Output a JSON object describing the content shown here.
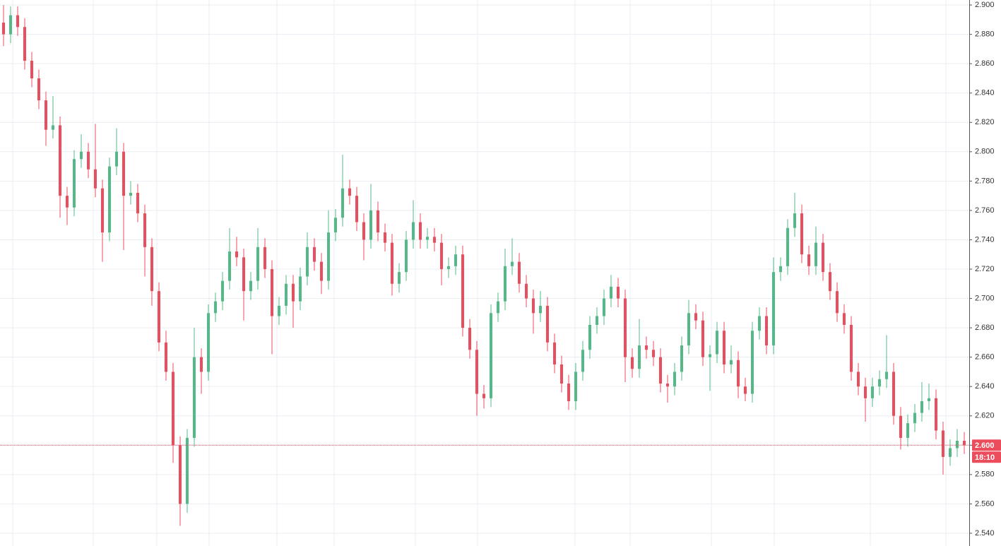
{
  "chart_data": {
    "type": "candlestick",
    "ylim": [
      2.5313,
      2.9034
    ],
    "yticks": [
      {
        "value": 2.54,
        "label": "2.540"
      },
      {
        "value": 2.56,
        "label": "2.560"
      },
      {
        "value": 2.58,
        "label": "2.580"
      },
      {
        "value": 2.6,
        "label": "2.600"
      },
      {
        "value": 2.62,
        "label": "2.620"
      },
      {
        "value": 2.64,
        "label": "2.640"
      },
      {
        "value": 2.66,
        "label": "2.660"
      },
      {
        "value": 2.68,
        "label": "2.680"
      },
      {
        "value": 2.7,
        "label": "2.700"
      },
      {
        "value": 2.72,
        "label": "2.720"
      },
      {
        "value": 2.74,
        "label": "2.740"
      },
      {
        "value": 2.76,
        "label": "2.760"
      },
      {
        "value": 2.78,
        "label": "2.780"
      },
      {
        "value": 2.8,
        "label": "2.800"
      },
      {
        "value": 2.82,
        "label": "2.820"
      },
      {
        "value": 2.84,
        "label": "2.840"
      },
      {
        "value": 2.86,
        "label": "2.860"
      },
      {
        "value": 2.88,
        "label": "2.880"
      },
      {
        "value": 2.9,
        "label": "2.900"
      }
    ],
    "grid": true,
    "up_color": "#53b987",
    "down_color": "#eb4d5c",
    "last_price": {
      "value": 2.6,
      "label": "2.600"
    },
    "countdown": "18:10",
    "ohlc": [
      [
        2.888,
        2.9,
        2.872,
        2.88
      ],
      [
        2.88,
        2.899,
        2.874,
        2.893
      ],
      [
        2.893,
        2.899,
        2.879,
        2.885
      ],
      [
        2.885,
        2.891,
        2.856,
        2.862
      ],
      [
        2.862,
        2.868,
        2.844,
        2.85
      ],
      [
        2.85,
        2.856,
        2.829,
        2.835
      ],
      [
        2.835,
        2.841,
        2.804,
        2.815
      ],
      [
        2.815,
        2.838,
        2.809,
        2.818
      ],
      [
        2.818,
        2.824,
        2.755,
        2.77
      ],
      [
        2.77,
        2.776,
        2.75,
        2.762
      ],
      [
        2.762,
        2.801,
        2.756,
        2.795
      ],
      [
        2.795,
        2.812,
        2.789,
        2.8
      ],
      [
        2.8,
        2.806,
        2.782,
        2.788
      ],
      [
        2.788,
        2.819,
        2.769,
        2.775
      ],
      [
        2.775,
        2.781,
        2.725,
        2.745
      ],
      [
        2.745,
        2.796,
        2.739,
        2.79
      ],
      [
        2.79,
        2.816,
        2.784,
        2.8
      ],
      [
        2.8,
        2.806,
        2.733,
        2.77
      ],
      [
        2.77,
        2.78,
        2.764,
        2.772
      ],
      [
        2.772,
        2.778,
        2.752,
        2.758
      ],
      [
        2.758,
        2.764,
        2.715,
        2.735
      ],
      [
        2.735,
        2.741,
        2.695,
        2.705
      ],
      [
        2.705,
        2.711,
        2.664,
        2.67
      ],
      [
        2.67,
        2.678,
        2.644,
        2.65
      ],
      [
        2.65,
        2.656,
        2.588,
        2.6
      ],
      [
        2.6,
        2.606,
        2.545,
        2.56
      ],
      [
        2.56,
        2.611,
        2.554,
        2.605
      ],
      [
        2.605,
        2.68,
        2.599,
        2.66
      ],
      [
        2.66,
        2.666,
        2.635,
        2.65
      ],
      [
        2.65,
        2.696,
        2.644,
        2.69
      ],
      [
        2.69,
        2.704,
        2.684,
        2.698
      ],
      [
        2.698,
        2.718,
        2.692,
        2.712
      ],
      [
        2.712,
        2.748,
        2.706,
        2.732
      ],
      [
        2.732,
        2.742,
        2.722,
        2.728
      ],
      [
        2.728,
        2.734,
        2.685,
        2.705
      ],
      [
        2.705,
        2.718,
        2.699,
        2.712
      ],
      [
        2.712,
        2.748,
        2.706,
        2.735
      ],
      [
        2.735,
        2.741,
        2.714,
        2.72
      ],
      [
        2.72,
        2.726,
        2.662,
        2.688
      ],
      [
        2.688,
        2.701,
        2.682,
        2.695
      ],
      [
        2.695,
        2.716,
        2.689,
        2.71
      ],
      [
        2.71,
        2.716,
        2.68,
        2.698
      ],
      [
        2.698,
        2.721,
        2.692,
        2.715
      ],
      [
        2.715,
        2.745,
        2.709,
        2.735
      ],
      [
        2.735,
        2.741,
        2.719,
        2.725
      ],
      [
        2.725,
        2.731,
        2.703,
        2.712
      ],
      [
        2.712,
        2.76,
        2.706,
        2.745
      ],
      [
        2.745,
        2.761,
        2.739,
        2.755
      ],
      [
        2.755,
        2.798,
        2.749,
        2.775
      ],
      [
        2.775,
        2.781,
        2.764,
        2.77
      ],
      [
        2.77,
        2.776,
        2.746,
        2.752
      ],
      [
        2.752,
        2.758,
        2.726,
        2.74
      ],
      [
        2.74,
        2.778,
        2.734,
        2.76
      ],
      [
        2.76,
        2.766,
        2.739,
        2.745
      ],
      [
        2.745,
        2.751,
        2.732,
        2.738
      ],
      [
        2.738,
        2.744,
        2.702,
        2.71
      ],
      [
        2.71,
        2.724,
        2.704,
        2.718
      ],
      [
        2.718,
        2.746,
        2.712,
        2.74
      ],
      [
        2.74,
        2.767,
        2.734,
        2.752
      ],
      [
        2.752,
        2.758,
        2.734,
        2.74
      ],
      [
        2.74,
        2.748,
        2.734,
        2.742
      ],
      [
        2.742,
        2.748,
        2.732,
        2.738
      ],
      [
        2.738,
        2.744,
        2.709,
        2.72
      ],
      [
        2.72,
        2.728,
        2.714,
        2.722
      ],
      [
        2.722,
        2.736,
        2.716,
        2.73
      ],
      [
        2.73,
        2.736,
        2.674,
        2.68
      ],
      [
        2.68,
        2.686,
        2.659,
        2.665
      ],
      [
        2.665,
        2.671,
        2.62,
        2.635
      ],
      [
        2.635,
        2.641,
        2.625,
        2.632
      ],
      [
        2.632,
        2.696,
        2.626,
        2.69
      ],
      [
        2.69,
        2.704,
        2.684,
        2.698
      ],
      [
        2.698,
        2.734,
        2.692,
        2.722
      ],
      [
        2.722,
        2.741,
        2.716,
        2.725
      ],
      [
        2.725,
        2.731,
        2.704,
        2.71
      ],
      [
        2.71,
        2.716,
        2.694,
        2.7
      ],
      [
        2.7,
        2.706,
        2.676,
        2.69
      ],
      [
        2.69,
        2.705,
        2.684,
        2.695
      ],
      [
        2.695,
        2.701,
        2.664,
        2.67
      ],
      [
        2.67,
        2.676,
        2.649,
        2.655
      ],
      [
        2.655,
        2.661,
        2.636,
        2.642
      ],
      [
        2.642,
        2.648,
        2.624,
        2.63
      ],
      [
        2.63,
        2.656,
        2.624,
        2.65
      ],
      [
        2.65,
        2.671,
        2.644,
        2.665
      ],
      [
        2.665,
        2.688,
        2.659,
        2.682
      ],
      [
        2.682,
        2.694,
        2.676,
        2.688
      ],
      [
        2.688,
        2.706,
        2.682,
        2.7
      ],
      [
        2.7,
        2.716,
        2.694,
        2.708
      ],
      [
        2.708,
        2.714,
        2.694,
        2.7
      ],
      [
        2.7,
        2.706,
        2.643,
        2.66
      ],
      [
        2.66,
        2.666,
        2.646,
        2.652
      ],
      [
        2.652,
        2.686,
        2.646,
        2.668
      ],
      [
        2.668,
        2.674,
        2.659,
        2.665
      ],
      [
        2.665,
        2.671,
        2.654,
        2.66
      ],
      [
        2.66,
        2.666,
        2.636,
        2.642
      ],
      [
        2.642,
        2.648,
        2.629,
        2.64
      ],
      [
        2.64,
        2.656,
        2.634,
        2.65
      ],
      [
        2.65,
        2.674,
        2.644,
        2.668
      ],
      [
        2.668,
        2.699,
        2.662,
        2.69
      ],
      [
        2.69,
        2.696,
        2.679,
        2.685
      ],
      [
        2.685,
        2.691,
        2.654,
        2.66
      ],
      [
        2.66,
        2.668,
        2.637,
        2.662
      ],
      [
        2.662,
        2.684,
        2.656,
        2.678
      ],
      [
        2.678,
        2.684,
        2.649,
        2.655
      ],
      [
        2.655,
        2.668,
        2.649,
        2.658
      ],
      [
        2.658,
        2.664,
        2.632,
        2.64
      ],
      [
        2.64,
        2.646,
        2.63,
        2.635
      ],
      [
        2.635,
        2.684,
        2.629,
        2.678
      ],
      [
        2.678,
        2.694,
        2.672,
        2.688
      ],
      [
        2.688,
        2.694,
        2.662,
        2.668
      ],
      [
        2.668,
        2.728,
        2.662,
        2.718
      ],
      [
        2.718,
        2.728,
        2.712,
        2.722
      ],
      [
        2.722,
        2.754,
        2.716,
        2.748
      ],
      [
        2.748,
        2.772,
        2.742,
        2.758
      ],
      [
        2.758,
        2.764,
        2.724,
        2.73
      ],
      [
        2.73,
        2.736,
        2.716,
        2.722
      ],
      [
        2.722,
        2.749,
        2.716,
        2.738
      ],
      [
        2.738,
        2.744,
        2.712,
        2.718
      ],
      [
        2.718,
        2.724,
        2.699,
        2.705
      ],
      [
        2.705,
        2.711,
        2.684,
        2.69
      ],
      [
        2.69,
        2.696,
        2.676,
        2.682
      ],
      [
        2.682,
        2.688,
        2.644,
        2.65
      ],
      [
        2.65,
        2.656,
        2.634,
        2.64
      ],
      [
        2.64,
        2.646,
        2.616,
        2.632
      ],
      [
        2.632,
        2.646,
        2.626,
        2.64
      ],
      [
        2.64,
        2.651,
        2.634,
        2.645
      ],
      [
        2.645,
        2.675,
        2.639,
        2.65
      ],
      [
        2.65,
        2.656,
        2.614,
        2.62
      ],
      [
        2.62,
        2.626,
        2.597,
        2.605
      ],
      [
        2.605,
        2.621,
        2.599,
        2.615
      ],
      [
        2.615,
        2.628,
        2.609,
        2.622
      ],
      [
        2.622,
        2.643,
        2.616,
        2.63
      ],
      [
        2.63,
        2.642,
        2.624,
        2.632
      ],
      [
        2.632,
        2.638,
        2.604,
        2.61
      ],
      [
        2.61,
        2.616,
        2.58,
        2.592
      ],
      [
        2.592,
        2.604,
        2.586,
        2.598
      ],
      [
        2.598,
        2.611,
        2.592,
        2.603
      ],
      [
        2.603,
        2.609,
        2.594,
        2.6
      ]
    ]
  }
}
